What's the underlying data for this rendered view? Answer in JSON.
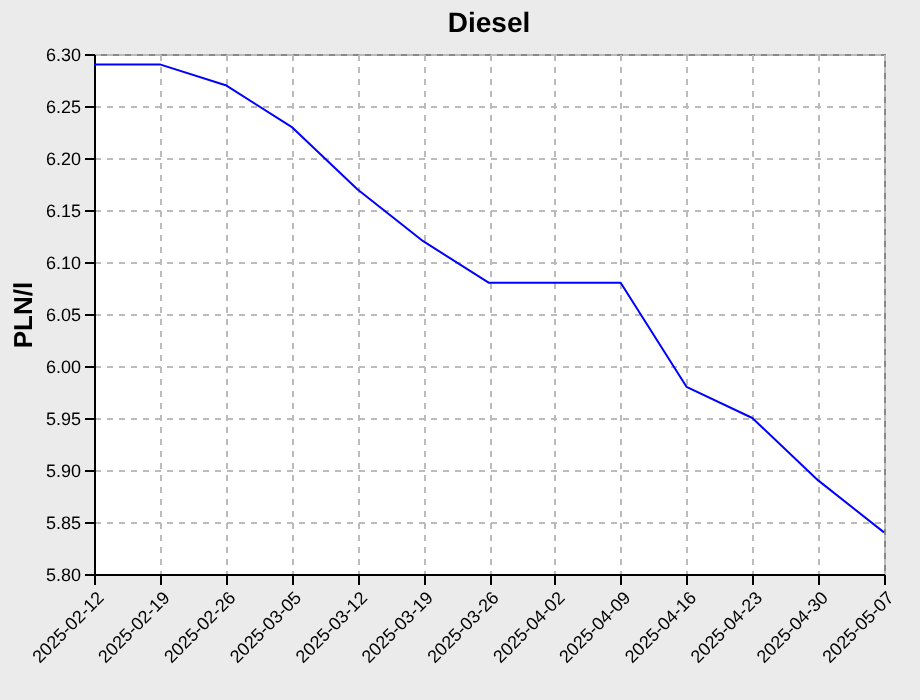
{
  "chart_data": {
    "type": "line",
    "title": "Diesel",
    "ylabel": "PLN/l",
    "categories": [
      "2025-02-12",
      "2025-02-19",
      "2025-02-26",
      "2025-03-05",
      "2025-03-12",
      "2025-03-19",
      "2025-03-26",
      "2025-04-02",
      "2025-04-09",
      "2025-04-16",
      "2025-04-23",
      "2025-04-30",
      "2025-05-07"
    ],
    "series": [
      {
        "color": "#0000ff",
        "values": [
          6.29,
          6.29,
          6.27,
          6.23,
          6.17,
          6.12,
          6.08,
          6.08,
          6.08,
          5.98,
          5.95,
          5.89,
          5.84
        ]
      }
    ],
    "ylim": [
      5.8,
      6.3
    ],
    "yticks": [
      {
        "value": 5.8,
        "label": "5.80"
      },
      {
        "value": 5.85,
        "label": "5.85"
      },
      {
        "value": 5.9,
        "label": "5.90"
      },
      {
        "value": 5.95,
        "label": "5.95"
      },
      {
        "value": 6.0,
        "label": "6.00"
      },
      {
        "value": 6.05,
        "label": "6.05"
      },
      {
        "value": 6.1,
        "label": "6.10"
      },
      {
        "value": 6.15,
        "label": "6.15"
      },
      {
        "value": 6.2,
        "label": "6.20"
      },
      {
        "value": 6.25,
        "label": "6.25"
      },
      {
        "value": 6.3,
        "label": "6.30"
      }
    ],
    "grid": true,
    "legend": false,
    "marker": "none",
    "line_style": "solid"
  }
}
